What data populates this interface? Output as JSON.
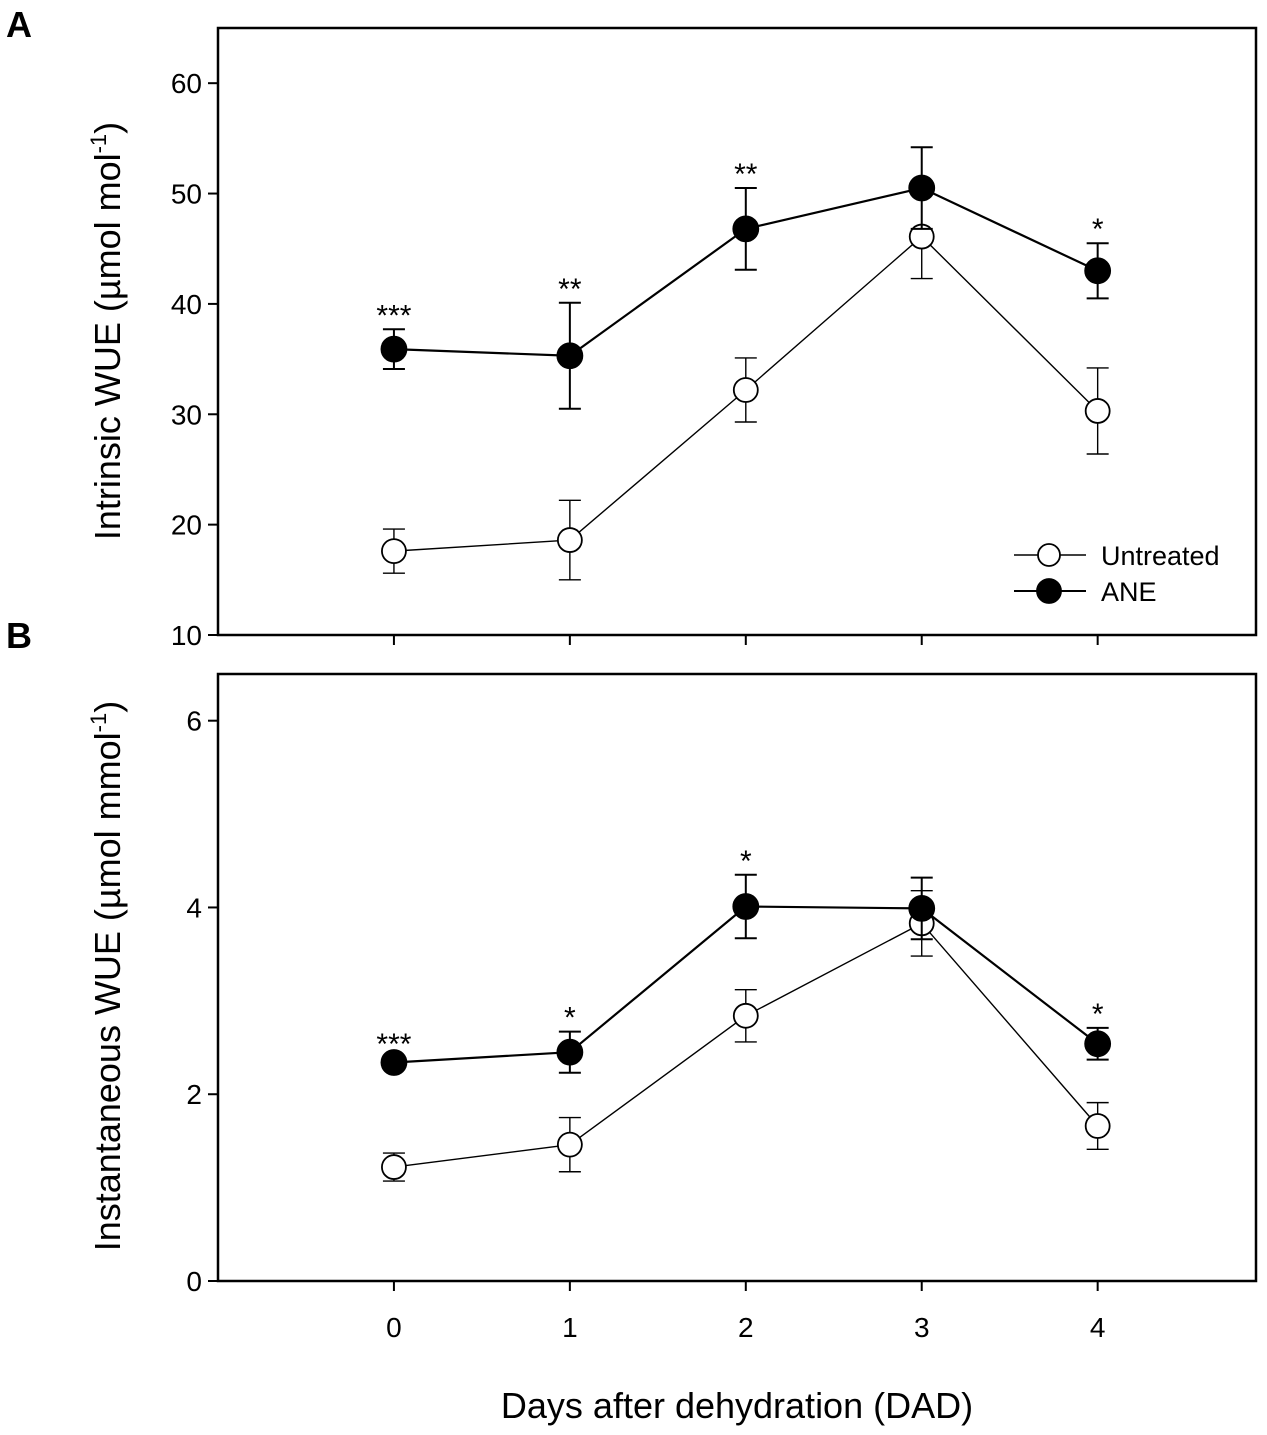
{
  "figure": {
    "xlabel": "Days after dehydration (DAD)",
    "x_ticks": [
      "0",
      "1",
      "2",
      "3",
      "4"
    ]
  },
  "legend": {
    "location": "lower-right of panel A",
    "entries": [
      {
        "name": "Untreated",
        "marker": "open-circle"
      },
      {
        "name": "ANE",
        "marker": "filled-circle"
      }
    ]
  },
  "colors": {
    "line": "#000000",
    "open_fill": "#ffffff",
    "filled_fill": "#000000"
  },
  "chart_data": [
    {
      "type": "line",
      "panel": "A",
      "ylabel_main": "Intrinsic WUE (µmol mol",
      "ylabel_sup": "-1",
      "ylabel_end": ")",
      "ylim": [
        10,
        65
      ],
      "xlim": [
        -1,
        4.9
      ],
      "y_ticks": [
        "10",
        "20",
        "30",
        "40",
        "50",
        "60"
      ],
      "x": [
        0,
        1,
        2,
        3,
        4
      ],
      "series": [
        {
          "name": "Untreated",
          "values": [
            17.6,
            18.6,
            32.2,
            46.1,
            30.3
          ],
          "err": [
            2.0,
            3.6,
            2.9,
            3.8,
            3.9
          ]
        },
        {
          "name": "ANE",
          "values": [
            35.9,
            35.3,
            46.8,
            50.5,
            43.0
          ],
          "err": [
            1.8,
            4.8,
            3.7,
            3.7,
            2.5
          ]
        }
      ],
      "annotations": [
        "***",
        "**",
        "**",
        "",
        "*"
      ]
    },
    {
      "type": "line",
      "panel": "B",
      "ylabel_main": "Instantaneous WUE (µmol mmol",
      "ylabel_sup": "-1",
      "ylabel_end": ")",
      "ylim": [
        0,
        6.5
      ],
      "xlim": [
        -1,
        4.9
      ],
      "y_ticks": [
        "0",
        "2",
        "4",
        "6"
      ],
      "x": [
        0,
        1,
        2,
        3,
        4
      ],
      "series": [
        {
          "name": "Untreated",
          "values": [
            1.22,
            1.46,
            2.84,
            3.83,
            1.66
          ],
          "err": [
            0.15,
            0.29,
            0.28,
            0.35,
            0.25
          ]
        },
        {
          "name": "ANE",
          "values": [
            2.34,
            2.45,
            4.01,
            3.99,
            2.54
          ],
          "err": [
            0.05,
            0.22,
            0.34,
            0.33,
            0.17
          ]
        }
      ],
      "annotations": [
        "***",
        "*",
        "*",
        "",
        "*"
      ]
    }
  ]
}
